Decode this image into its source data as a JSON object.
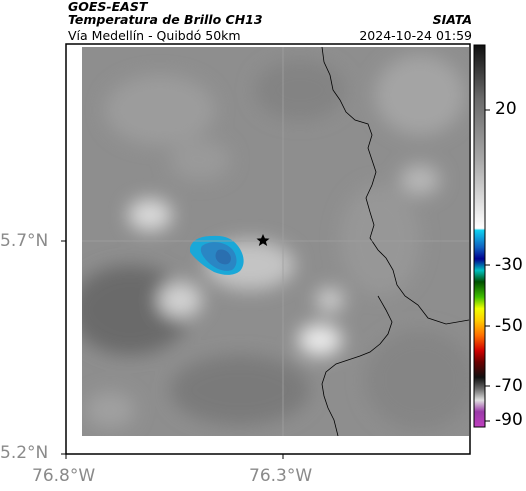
{
  "header": {
    "organization": "GOES-EAST",
    "product": "Temperatura de Brillo CH13",
    "brand": "SIATA",
    "location": "Vía Medellín - Quibdó 50km",
    "datetime": "2024-10-24 01:59"
  },
  "axes": {
    "lat_ticks": [
      "5.7°N",
      "5.2°N"
    ],
    "lon_ticks": [
      "76.8°W",
      "76.3°W"
    ]
  },
  "colorbar": {
    "ticks": [
      "20",
      "-30",
      "-50",
      "-70",
      "-90"
    ]
  },
  "map": {
    "marker": "star-icon",
    "colors": {
      "background_gray": "#8c8c8c",
      "cold_cloud_edge": "#1aa8d8",
      "cold_cloud_core": "#2878b4",
      "border_line": "#000000",
      "gridline": "#a0a0a0"
    }
  }
}
